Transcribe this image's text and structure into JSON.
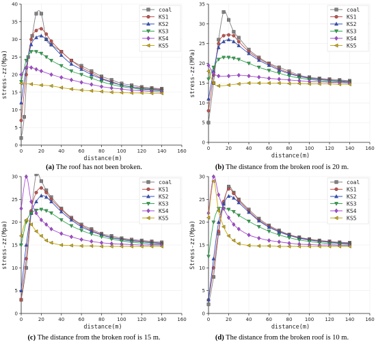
{
  "colors": {
    "coal": "#808080",
    "KS1": "#c0504d",
    "KS2": "#2e4fc9",
    "KS3": "#2aa84a",
    "KS4": "#a845d8",
    "KS5": "#c9a800"
  },
  "chart_data": [
    {
      "type": "line",
      "panel_label": "(a)",
      "caption": "The roof has not been broken.",
      "xlabel": "distance(m)",
      "ylabel": "stress-zz(Mpa)",
      "xlim": [
        0,
        160
      ],
      "ylim": [
        0,
        40
      ],
      "xticks": [
        0,
        20,
        40,
        60,
        80,
        100,
        120,
        140,
        160
      ],
      "yticks": [
        0,
        5,
        10,
        15,
        20,
        25,
        30,
        35,
        40
      ],
      "legend_position": "top-right",
      "series": [
        {
          "name": "coal",
          "x": [
            0,
            3,
            7,
            11,
            15,
            20,
            25,
            30,
            40,
            50,
            60,
            70,
            80,
            90,
            100,
            110,
            120,
            130,
            140
          ],
          "y": [
            2,
            8,
            25,
            31,
            37.3,
            37.3,
            30,
            28.5,
            26.5,
            24,
            22.5,
            21,
            19.5,
            18.5,
            17.5,
            17,
            16.5,
            16.2,
            16
          ]
        },
        {
          "name": "KS1",
          "x": [
            0,
            5,
            10,
            15,
            20,
            25,
            30,
            40,
            50,
            60,
            70,
            80,
            90,
            100,
            110,
            120,
            130,
            140
          ],
          "y": [
            7,
            20,
            30,
            32.5,
            33,
            31.5,
            29.5,
            26.5,
            24,
            22,
            20.5,
            19,
            18,
            17,
            16.5,
            16.2,
            16,
            15.8
          ]
        },
        {
          "name": "KS2",
          "x": [
            0,
            5,
            10,
            15,
            20,
            25,
            30,
            40,
            50,
            60,
            70,
            80,
            90,
            100,
            110,
            120,
            130,
            140
          ],
          "y": [
            12,
            22,
            28.5,
            30.5,
            31,
            30,
            28.5,
            25.5,
            23,
            21.5,
            20,
            18.8,
            17.8,
            17,
            16.5,
            16,
            15.8,
            15.6
          ]
        },
        {
          "name": "KS3",
          "x": [
            0,
            5,
            10,
            15,
            20,
            25,
            30,
            40,
            50,
            60,
            70,
            80,
            90,
            100,
            110,
            120,
            130,
            140
          ],
          "y": [
            18,
            24,
            26.5,
            26.5,
            26,
            25,
            24,
            22.5,
            21,
            20,
            19,
            18,
            17.2,
            16.6,
            16.2,
            15.8,
            15.6,
            15.4
          ]
        },
        {
          "name": "KS4",
          "x": [
            0,
            5,
            10,
            15,
            20,
            30,
            40,
            50,
            60,
            70,
            80,
            90,
            100,
            110,
            120,
            130,
            140
          ],
          "y": [
            20,
            22,
            22,
            21.5,
            21,
            20,
            19.2,
            18.5,
            17.8,
            17.2,
            16.6,
            16.2,
            15.9,
            15.6,
            15.4,
            15.2,
            15.1
          ]
        },
        {
          "name": "KS5",
          "x": [
            0,
            10,
            20,
            30,
            40,
            50,
            60,
            70,
            80,
            90,
            100,
            110,
            120,
            130,
            140
          ],
          "y": [
            17.5,
            17.3,
            17,
            16.8,
            16.3,
            15.9,
            15.6,
            15.4,
            15.2,
            15.0,
            14.9,
            14.8,
            14.8,
            14.7,
            14.7
          ]
        }
      ]
    },
    {
      "type": "line",
      "panel_label": "(b)",
      "caption": "The distance from the broken roof is 20 m.",
      "xlabel": "distance(m)",
      "ylabel": "stress-zz(MPa)",
      "xlim": [
        0,
        160
      ],
      "ylim": [
        0,
        35
      ],
      "xticks": [
        0,
        20,
        40,
        60,
        80,
        100,
        120,
        140,
        160
      ],
      "yticks": [
        0,
        5,
        10,
        15,
        20,
        25,
        30,
        35
      ],
      "legend_position": "top-right",
      "series": [
        {
          "name": "coal",
          "x": [
            0,
            5,
            10,
            15,
            20,
            25,
            30,
            40,
            50,
            60,
            70,
            80,
            90,
            100,
            110,
            120,
            130,
            140
          ],
          "y": [
            5,
            15,
            26,
            33,
            31,
            28,
            26.5,
            23.5,
            21.5,
            20,
            19,
            18,
            17,
            16.5,
            16.2,
            16,
            15.8,
            15.6
          ]
        },
        {
          "name": "KS1",
          "x": [
            0,
            5,
            10,
            15,
            20,
            25,
            30,
            40,
            50,
            60,
            70,
            80,
            90,
            100,
            110,
            120,
            130,
            140
          ],
          "y": [
            8,
            17,
            25,
            27,
            27.2,
            27,
            25.5,
            23,
            21.2,
            19.8,
            18.6,
            17.6,
            16.8,
            16.3,
            16,
            15.8,
            15.6,
            15.4
          ]
        },
        {
          "name": "KS2",
          "x": [
            0,
            5,
            10,
            15,
            20,
            25,
            30,
            40,
            50,
            60,
            70,
            80,
            90,
            100,
            110,
            120,
            130,
            140
          ],
          "y": [
            11,
            18,
            24,
            25.5,
            26,
            25.5,
            24.5,
            22.5,
            20.8,
            19.5,
            18.3,
            17.4,
            16.7,
            16.2,
            15.9,
            15.7,
            15.5,
            15.3
          ]
        },
        {
          "name": "KS3",
          "x": [
            0,
            5,
            10,
            15,
            20,
            25,
            30,
            40,
            50,
            60,
            70,
            80,
            90,
            100,
            110,
            120,
            130,
            140
          ],
          "y": [
            16,
            19,
            21,
            21.5,
            21.5,
            21.3,
            21,
            20,
            19,
            18.2,
            17.5,
            16.8,
            16.3,
            15.9,
            15.6,
            15.4,
            15.3,
            15.2
          ]
        },
        {
          "name": "KS4",
          "x": [
            0,
            5,
            10,
            20,
            30,
            40,
            50,
            60,
            70,
            80,
            90,
            100,
            110,
            120,
            130,
            140
          ],
          "y": [
            19.5,
            17.5,
            16.8,
            16.8,
            17,
            16.8,
            16.5,
            16.2,
            16,
            15.8,
            15.6,
            15.4,
            15.3,
            15.2,
            15.1,
            15
          ]
        },
        {
          "name": "KS5",
          "x": [
            0,
            5,
            10,
            20,
            30,
            40,
            50,
            60,
            70,
            80,
            90,
            100,
            110,
            120,
            130,
            140
          ],
          "y": [
            18,
            15,
            14.3,
            14.5,
            14.8,
            15,
            15,
            15,
            15,
            14.9,
            14.9,
            14.8,
            14.8,
            14.8,
            14.7,
            14.7
          ]
        }
      ]
    },
    {
      "type": "line",
      "panel_label": "(c)",
      "caption": "The distance from the broken roof is 15 m.",
      "xlabel": "distance(m)",
      "ylabel": "stress-zz(Mpa)",
      "xlim": [
        0,
        160
      ],
      "ylim": [
        0,
        30
      ],
      "xticks": [
        0,
        20,
        40,
        60,
        80,
        100,
        120,
        140,
        160
      ],
      "yticks": [
        0,
        5,
        10,
        15,
        20,
        25,
        30
      ],
      "legend_position": "top-right",
      "series": [
        {
          "name": "coal",
          "x": [
            0,
            5,
            10,
            15,
            20,
            25,
            30,
            40,
            50,
            60,
            70,
            80,
            90,
            100,
            110,
            120,
            130,
            140
          ],
          "y": [
            3,
            10,
            22,
            30.5,
            29,
            27,
            25.5,
            23,
            21,
            19.5,
            18.5,
            17.5,
            17,
            16.5,
            16.2,
            16,
            15.8,
            15.6
          ]
        },
        {
          "name": "KS1",
          "x": [
            0,
            5,
            10,
            15,
            20,
            25,
            30,
            40,
            50,
            60,
            70,
            80,
            90,
            100,
            110,
            120,
            130,
            140
          ],
          "y": [
            3,
            12,
            22.5,
            26.5,
            27.5,
            26.5,
            25,
            22.8,
            20.8,
            19.3,
            18.2,
            17.3,
            16.7,
            16.3,
            16,
            15.8,
            15.6,
            15.4
          ]
        },
        {
          "name": "KS2",
          "x": [
            0,
            5,
            10,
            15,
            20,
            25,
            30,
            40,
            50,
            60,
            70,
            80,
            90,
            100,
            110,
            120,
            130,
            140
          ],
          "y": [
            5,
            15,
            22,
            24.5,
            25.8,
            25.5,
            24.5,
            22.3,
            20.5,
            19,
            18,
            17.2,
            16.6,
            16.2,
            15.9,
            15.7,
            15.5,
            15.3
          ]
        },
        {
          "name": "KS3",
          "x": [
            0,
            5,
            10,
            15,
            20,
            25,
            30,
            40,
            50,
            60,
            70,
            80,
            90,
            100,
            110,
            120,
            130,
            140
          ],
          "y": [
            15,
            20,
            22,
            22.6,
            22.8,
            22.5,
            22,
            20.5,
            19.2,
            18.2,
            17.4,
            16.8,
            16.3,
            15.9,
            15.6,
            15.4,
            15.2,
            15.1
          ]
        },
        {
          "name": "KS4",
          "x": [
            0,
            5,
            10,
            15,
            20,
            25,
            30,
            40,
            50,
            60,
            70,
            80,
            90,
            100,
            110,
            120,
            130,
            140
          ],
          "y": [
            23,
            30,
            24.5,
            22,
            20.5,
            19.5,
            18.5,
            17.5,
            16.8,
            16.2,
            15.8,
            15.5,
            15.3,
            15.2,
            15.1,
            15,
            15,
            15
          ]
        },
        {
          "name": "KS5",
          "x": [
            0,
            5,
            10,
            15,
            20,
            25,
            30,
            40,
            50,
            60,
            70,
            80,
            90,
            100,
            110,
            120,
            130,
            140
          ],
          "y": [
            17,
            20.5,
            19.5,
            18,
            17,
            16,
            15.5,
            15,
            14.9,
            14.8,
            14.8,
            14.7,
            14.7,
            14.7,
            14.7,
            14.7,
            14.7,
            14.7
          ]
        }
      ]
    },
    {
      "type": "line",
      "panel_label": "(d)",
      "caption": "The distance from the broken roof is 10 m.",
      "xlabel": "distance(m)",
      "ylabel": "Stress-zz(Mpa)",
      "xlim": [
        0,
        160
      ],
      "ylim": [
        0,
        30
      ],
      "xticks": [
        0,
        20,
        40,
        60,
        80,
        100,
        120,
        140,
        160
      ],
      "yticks": [
        0,
        5,
        10,
        15,
        20,
        25,
        30
      ],
      "legend_position": "top-right",
      "series": [
        {
          "name": "coal",
          "x": [
            0,
            5,
            10,
            15,
            20,
            25,
            30,
            40,
            50,
            60,
            70,
            80,
            90,
            100,
            110,
            120,
            130,
            140
          ],
          "y": [
            2,
            8,
            17.5,
            24,
            27.8,
            26.5,
            25,
            22.8,
            20.8,
            19.3,
            18.2,
            17.3,
            16.7,
            16.3,
            16,
            15.8,
            15.6,
            15.5
          ]
        },
        {
          "name": "KS1",
          "x": [
            0,
            5,
            10,
            15,
            20,
            25,
            30,
            40,
            50,
            60,
            70,
            80,
            90,
            100,
            110,
            120,
            130,
            140
          ],
          "y": [
            3,
            10,
            18,
            24.5,
            27.3,
            26.3,
            24.8,
            22.5,
            20.5,
            19.1,
            18,
            17.2,
            16.6,
            16.2,
            15.9,
            15.7,
            15.5,
            15.4
          ]
        },
        {
          "name": "KS2",
          "x": [
            0,
            5,
            10,
            15,
            20,
            25,
            30,
            40,
            50,
            60,
            70,
            80,
            90,
            100,
            110,
            120,
            130,
            140
          ],
          "y": [
            3,
            12,
            20,
            24,
            25.7,
            25.3,
            24.3,
            22.2,
            20.3,
            18.9,
            17.9,
            17.1,
            16.5,
            16.1,
            15.8,
            15.6,
            15.4,
            15.3
          ]
        },
        {
          "name": "KS3",
          "x": [
            0,
            5,
            10,
            15,
            20,
            25,
            30,
            40,
            50,
            60,
            70,
            80,
            90,
            100,
            110,
            120,
            130,
            140
          ],
          "y": [
            12.5,
            20,
            23,
            23,
            22.8,
            22.3,
            21.5,
            20.2,
            19,
            18,
            17.2,
            16.6,
            16.1,
            15.8,
            15.5,
            15.3,
            15.2,
            15.1
          ]
        },
        {
          "name": "KS4",
          "x": [
            0,
            5,
            10,
            15,
            20,
            25,
            30,
            40,
            50,
            60,
            70,
            80,
            90,
            100,
            110,
            120,
            130,
            140
          ],
          "y": [
            22,
            30,
            26,
            23,
            21,
            19.5,
            18.5,
            17.2,
            16.5,
            16,
            15.7,
            15.4,
            15.2,
            15.1,
            15,
            15,
            14.9,
            14.9
          ]
        },
        {
          "name": "KS5",
          "x": [
            0,
            5,
            10,
            15,
            20,
            25,
            30,
            40,
            50,
            60,
            70,
            80,
            90,
            100,
            110,
            120,
            130,
            140
          ],
          "y": [
            21,
            29,
            22.5,
            19,
            17,
            16,
            15.3,
            14.9,
            14.8,
            14.8,
            14.7,
            14.7,
            14.7,
            14.7,
            14.7,
            14.7,
            14.7,
            14.7
          ]
        }
      ]
    }
  ]
}
